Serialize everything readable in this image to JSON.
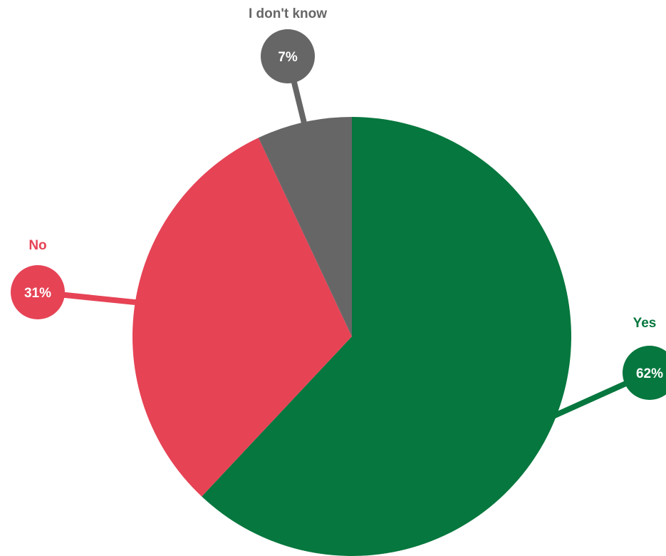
{
  "chart_data": {
    "type": "pie",
    "title": "",
    "slices": [
      {
        "label": "Yes",
        "value": 62,
        "display": "62%",
        "color": "#06773e"
      },
      {
        "label": "No",
        "value": 31,
        "display": "31%",
        "color": "#e64355"
      },
      {
        "label": "I don't know",
        "value": 7,
        "display": "7%",
        "color": "#666666"
      }
    ],
    "legend": "none",
    "labels": "callout-bubbles"
  }
}
